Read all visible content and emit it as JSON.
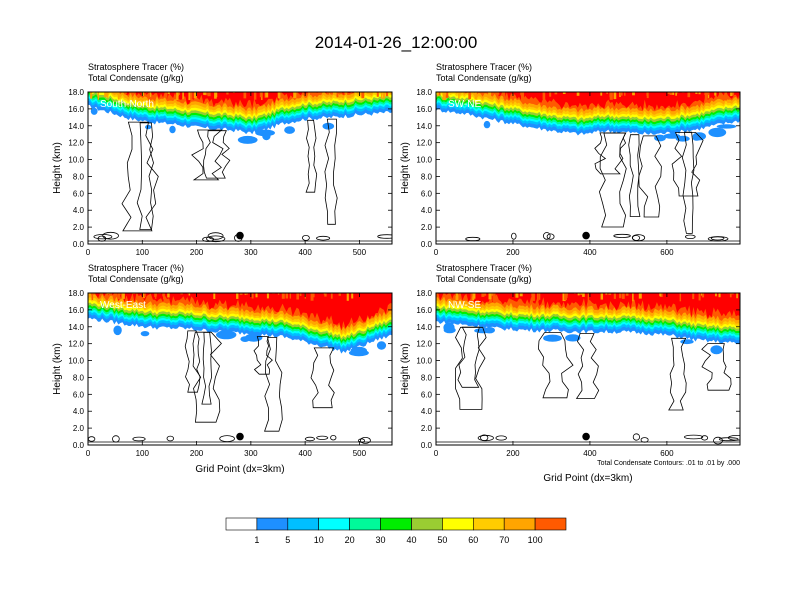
{
  "main_title": "2014-01-26_12:00:00",
  "colors": {
    "levels": [
      "#ffffff",
      "#1e90ff",
      "#00bfff",
      "#00ffff",
      "#00fa9a",
      "#00ee00",
      "#9acd32",
      "#ffff00",
      "#ffcc00",
      "#ffa500",
      "#ff5a00",
      "#ff0000"
    ],
    "contour": "#000000"
  },
  "colorbar": {
    "labels": [
      "1",
      "5",
      "10",
      "20",
      "30",
      "40",
      "50",
      "60",
      "70",
      "100"
    ]
  },
  "chart_data": [
    {
      "type": "heatmap",
      "title_line1": "Stratosphere Tracer   (%)",
      "title_line2": "Total Condensate   (g/kg)",
      "label": "South-North",
      "xlabel": "",
      "ylabel": "Height (km)",
      "xlim": [
        0,
        560
      ],
      "ylim": [
        0,
        18
      ],
      "xticks": [
        "0",
        "100",
        "200",
        "300",
        "400",
        "500"
      ],
      "xtick_values": [
        0,
        100,
        200,
        300,
        400,
        500
      ],
      "yticks": [
        "0.0",
        "2.0",
        "4.0",
        "6.0",
        "8.0",
        "10.0",
        "12.0",
        "14.0",
        "16.0",
        "18.0"
      ],
      "ytick_values": [
        0,
        2,
        4,
        6,
        8,
        10,
        12,
        14,
        16,
        18
      ],
      "marker": {
        "x": 280,
        "y": 1.0
      },
      "tracer_base_km": [
        [
          0,
          16.3
        ],
        [
          40,
          15.6
        ],
        [
          80,
          14.8
        ],
        [
          120,
          14.4
        ],
        [
          160,
          14.2
        ],
        [
          200,
          13.8
        ],
        [
          240,
          13.6
        ],
        [
          280,
          13.4
        ],
        [
          300,
          13.1
        ],
        [
          330,
          13.6
        ],
        [
          360,
          14.3
        ],
        [
          400,
          14.8
        ],
        [
          450,
          15.0
        ],
        [
          500,
          15.3
        ],
        [
          560,
          15.6
        ]
      ]
    },
    {
      "type": "heatmap",
      "title_line1": "Stratosphere Tracer   (%)",
      "title_line2": "Total Condensate   (g/kg)",
      "label": "SW-NE",
      "xlabel": "",
      "ylabel": "Height (km)",
      "xlim": [
        0,
        790
      ],
      "ylim": [
        0,
        18
      ],
      "xticks": [
        "0",
        "200",
        "400",
        "600"
      ],
      "xtick_values": [
        0,
        200,
        400,
        600
      ],
      "yticks": [
        "0.0",
        "2.0",
        "4.0",
        "6.0",
        "8.0",
        "10.0",
        "12.0",
        "14.0",
        "16.0",
        "18.0"
      ],
      "ytick_values": [
        0,
        2,
        4,
        6,
        8,
        10,
        12,
        14,
        16,
        18
      ],
      "marker": {
        "x": 390,
        "y": 1.0
      },
      "tracer_base_km": [
        [
          0,
          15.9
        ],
        [
          80,
          15.4
        ],
        [
          160,
          14.6
        ],
        [
          240,
          13.9
        ],
        [
          320,
          13.3
        ],
        [
          380,
          13.0
        ],
        [
          440,
          13.4
        ],
        [
          500,
          13.2
        ],
        [
          560,
          13.0
        ],
        [
          620,
          13.2
        ],
        [
          680,
          13.6
        ],
        [
          740,
          14.2
        ],
        [
          790,
          14.6
        ]
      ]
    },
    {
      "type": "heatmap",
      "title_line1": "Stratosphere Tracer   (%)",
      "title_line2": "Total Condensate   (g/kg)",
      "label": "West-East",
      "xlabel": "Grid Point (dx=3km)",
      "ylabel": "Height (km)",
      "xlim": [
        0,
        560
      ],
      "ylim": [
        0,
        18
      ],
      "xticks": [
        "0",
        "100",
        "200",
        "300",
        "400",
        "500"
      ],
      "xtick_values": [
        0,
        100,
        200,
        300,
        400,
        500
      ],
      "yticks": [
        "0.0",
        "2.0",
        "4.0",
        "6.0",
        "8.0",
        "10.0",
        "12.0",
        "14.0",
        "16.0",
        "18.0"
      ],
      "ytick_values": [
        0,
        2,
        4,
        6,
        8,
        10,
        12,
        14,
        16,
        18
      ],
      "marker": {
        "x": 280,
        "y": 1.0
      },
      "tracer_base_km": [
        [
          0,
          15.0
        ],
        [
          60,
          14.4
        ],
        [
          120,
          13.9
        ],
        [
          180,
          13.8
        ],
        [
          240,
          13.4
        ],
        [
          300,
          13.2
        ],
        [
          360,
          12.8
        ],
        [
          400,
          12.2
        ],
        [
          440,
          11.6
        ],
        [
          470,
          11.0
        ],
        [
          500,
          11.6
        ],
        [
          530,
          12.4
        ],
        [
          560,
          13.0
        ]
      ]
    },
    {
      "type": "heatmap",
      "title_line1": "Stratosphere Tracer   (%)",
      "title_line2": "Total Condensate   (g/kg)",
      "label": "NW-SE",
      "xlabel": "Grid Point (dx=3km)",
      "ylabel": "Height (km)",
      "xlim": [
        0,
        790
      ],
      "ylim": [
        0,
        18
      ],
      "xticks": [
        "0",
        "200",
        "400",
        "600"
      ],
      "xtick_values": [
        0,
        200,
        400,
        600
      ],
      "yticks": [
        "0.0",
        "2.0",
        "4.0",
        "6.0",
        "8.0",
        "10.0",
        "12.0",
        "14.0",
        "16.0",
        "18.0"
      ],
      "ytick_values": [
        0,
        2,
        4,
        6,
        8,
        10,
        12,
        14,
        16,
        18
      ],
      "marker": {
        "x": 390,
        "y": 1.0
      },
      "note": "Total Condensate Contours: .01 to .01 by .000",
      "tracer_base_km": [
        [
          0,
          14.6
        ],
        [
          80,
          14.2
        ],
        [
          160,
          13.8
        ],
        [
          240,
          13.6
        ],
        [
          320,
          13.5
        ],
        [
          400,
          13.4
        ],
        [
          480,
          13.4
        ],
        [
          560,
          13.2
        ],
        [
          620,
          12.9
        ],
        [
          680,
          12.4
        ],
        [
          740,
          12.2
        ],
        [
          790,
          12.0
        ]
      ]
    }
  ]
}
